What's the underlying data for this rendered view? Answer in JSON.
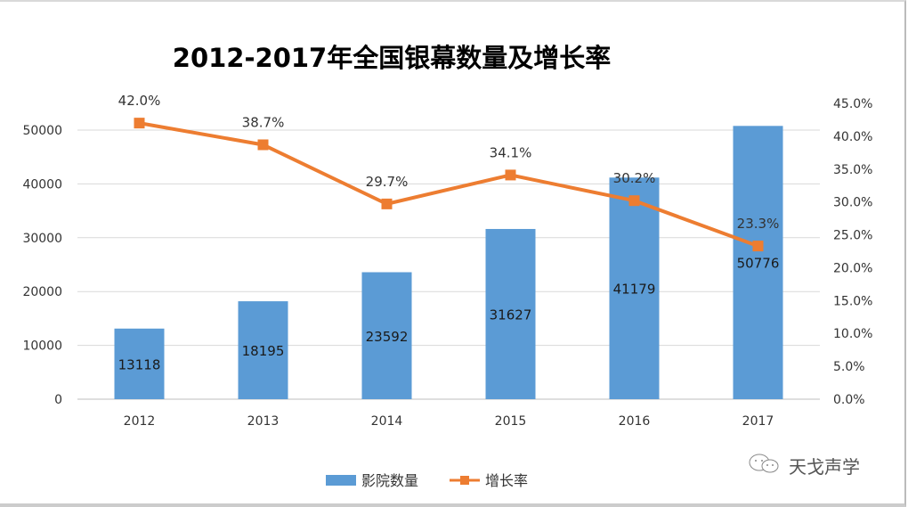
{
  "chart_data": {
    "type": "bar+line",
    "title": "2012-2017年全国银幕数量及增长率",
    "categories": [
      "2012",
      "2013",
      "2014",
      "2015",
      "2016",
      "2017"
    ],
    "series": [
      {
        "name": "影院数量",
        "type": "bar",
        "axis": "left",
        "values": [
          13118,
          18195,
          23592,
          31627,
          41179,
          50776
        ],
        "labels": [
          "13118",
          "18195",
          "23592",
          "31627",
          "41179",
          "50776"
        ],
        "color": "#5b9bd5"
      },
      {
        "name": "增长率",
        "type": "line",
        "axis": "right",
        "values": [
          42.0,
          38.7,
          29.7,
          34.1,
          30.2,
          23.3
        ],
        "labels": [
          "42.0%",
          "38.7%",
          "29.7%",
          "34.1%",
          "30.2%",
          "23.3%"
        ],
        "color": "#ed7d31"
      }
    ],
    "y_left": {
      "ylim": [
        0,
        50000
      ],
      "ticks": [
        "0",
        "10000",
        "20000",
        "30000",
        "40000",
        "50000"
      ]
    },
    "y_right": {
      "ylim": [
        0,
        45
      ],
      "ticks": [
        "0.0%",
        "5.0%",
        "10.0%",
        "15.0%",
        "20.0%",
        "25.0%",
        "30.0%",
        "35.0%",
        "40.0%",
        "45.0%"
      ]
    },
    "grid": true,
    "legend": "bottom"
  },
  "watermark": {
    "text": "天戈声学",
    "icon": "wechat-icon"
  }
}
